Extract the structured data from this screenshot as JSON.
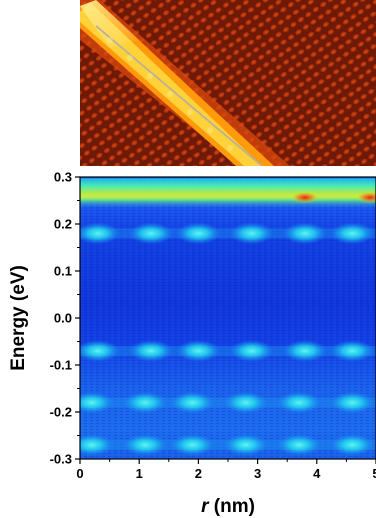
{
  "chart_data": [
    {
      "type": "image",
      "panel": "topographic image",
      "colormap": "black-red-orange-yellow-white",
      "colors": {
        "background": "#7a1f0a",
        "mid": "#d84b12",
        "bright": "#ffb400",
        "peak": "#fff28a",
        "line": "#b9b19a"
      },
      "features": [
        "atomic lattice corrugation",
        "bright diagonal step from upper-left to lower-right",
        "thin gray line along the bright step"
      ]
    },
    {
      "type": "heatmap",
      "panel": "energy vs position map",
      "xlabel": "r (nm)",
      "xlabel_var": "r",
      "xlabel_unit": " (nm)",
      "ylabel": "Energy (eV)",
      "xlim": [
        0,
        5
      ],
      "ylim": [
        -0.3,
        0.3
      ],
      "xticks": [
        0,
        1,
        2,
        3,
        4,
        5
      ],
      "yticks": [
        0.3,
        0.2,
        0.1,
        0.0,
        -0.1,
        -0.2,
        -0.3
      ],
      "ytick_labels": [
        "0.3",
        "0.2",
        "0.1",
        "0.0",
        "-0.1",
        "-0.2",
        "-0.3"
      ],
      "colormap": "jet",
      "colors": {
        "low": "#0b2cd6",
        "background": "#1850f0",
        "mid": "#1aa0f0",
        "high": "#22f0e8",
        "peak": "#9ef24b",
        "max": "#e83a1a"
      },
      "bands": [
        {
          "energy": 0.25,
          "character": "continuous high-intensity band (green/yellow with red spots)"
        },
        {
          "energy": 0.18,
          "character": "periodic cyan maxima"
        },
        {
          "energy": -0.07,
          "character": "periodic cyan maxima"
        },
        {
          "energy": -0.18,
          "character": "periodic cyan maxima"
        },
        {
          "energy": -0.27,
          "character": "periodic cyan maxima"
        }
      ],
      "band_maxima_r": {
        "upper": [
          0.3,
          1.2,
          2.0,
          2.9,
          3.8,
          4.6
        ],
        "lower": [
          0.2,
          1.1,
          1.9,
          2.8,
          3.7,
          4.6
        ]
      },
      "red_spots_r": [
        3.8,
        4.9
      ],
      "grid": false,
      "legend": "none"
    }
  ]
}
